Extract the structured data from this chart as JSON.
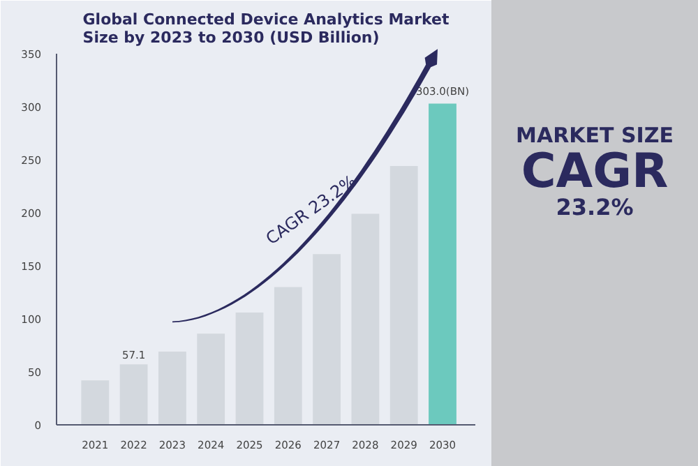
{
  "chart_data": {
    "type": "bar",
    "title": "Global Connected Device Analytics Market\nSize by 2023 to 2030 (USD Billion)",
    "categories": [
      "2021",
      "2022",
      "2023",
      "2024",
      "2025",
      "2026",
      "2027",
      "2028",
      "2029",
      "2030"
    ],
    "values": [
      42,
      57.1,
      69,
      86,
      106,
      130,
      161,
      199,
      244,
      303.0
    ],
    "colors": [
      "#d3d8de",
      "#d3d8de",
      "#d3d8de",
      "#d3d8de",
      "#d3d8de",
      "#d3d8de",
      "#d3d8de",
      "#d3d8de",
      "#d3d8de",
      "#6cc9be"
    ],
    "value_labels": [
      null,
      "57.1",
      null,
      null,
      null,
      null,
      null,
      null,
      null,
      "303.0(BN)"
    ],
    "ylim": [
      0,
      350
    ],
    "yticks": [
      0,
      50,
      100,
      150,
      200,
      250,
      300,
      350
    ],
    "grid": false,
    "annotations": [
      "CAGR 23.2%",
      "MARKET SIZE",
      "CAGR",
      "23.2%"
    ]
  }
}
